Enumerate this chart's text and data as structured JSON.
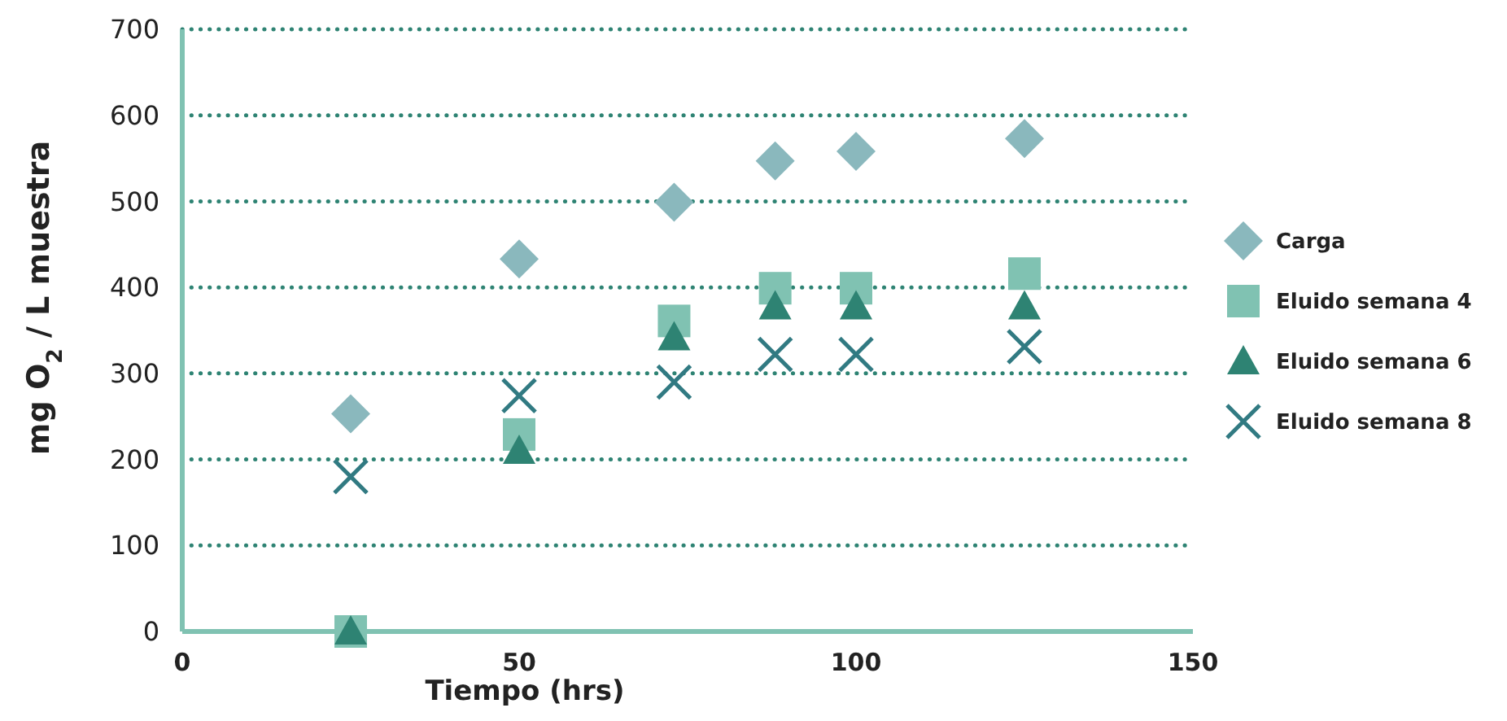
{
  "chart_data": {
    "type": "scatter",
    "xlabel": "Tiempo (hrs)",
    "ylabel": "mg O$_{2}$ / L muestra",
    "xlim": [
      0,
      150
    ],
    "xticks": [
      0,
      50,
      100,
      150
    ],
    "ylim": [
      0,
      700
    ],
    "yticks": [
      0,
      100,
      200,
      300,
      400,
      500,
      600,
      700
    ],
    "grid": "y",
    "legend": "right",
    "x": [
      25,
      50,
      73,
      88,
      100,
      125
    ],
    "series": [
      {
        "name": "Carga",
        "color": "#8ab8bd",
        "marker": "diamond",
        "values": [
          253,
          433,
          499,
          547,
          558,
          573
        ]
      },
      {
        "name": "Eluido semana 4",
        "color": "#80c2b2",
        "marker": "square",
        "values": [
          0,
          229,
          361,
          399,
          399,
          416
        ]
      },
      {
        "name": "Eluido semana 6",
        "color": "#2e8373",
        "marker": "triangle",
        "values": [
          0,
          210,
          342,
          378,
          378,
          378
        ]
      },
      {
        "name": "Eluido semana 8",
        "color": "#317a82",
        "marker": "cross",
        "values": [
          180,
          274,
          290,
          322,
          322,
          331
        ]
      }
    ]
  }
}
